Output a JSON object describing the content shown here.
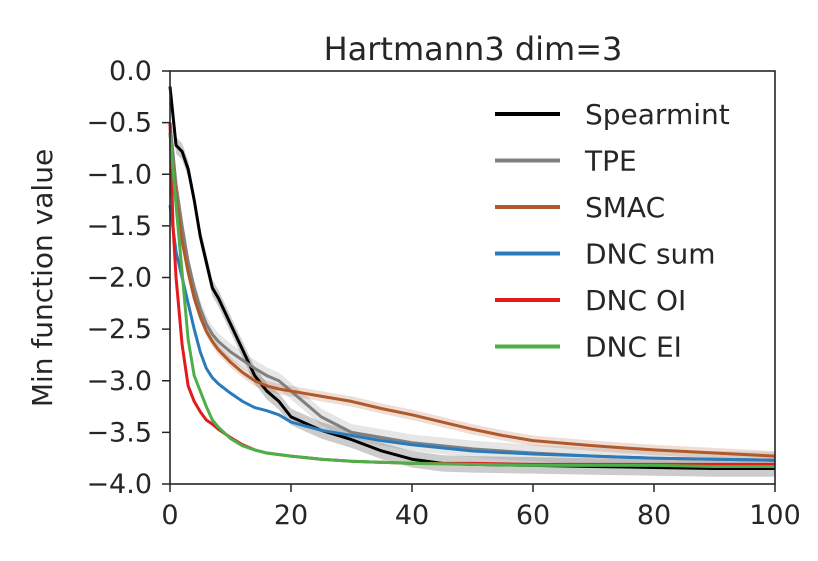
{
  "chart_data": {
    "type": "line",
    "title": "Hartmann3 dim=3",
    "xlabel": "",
    "ylabel": "Min function value",
    "xlim": [
      0,
      100
    ],
    "ylim": [
      -4.0,
      0.0
    ],
    "xticks": [
      0,
      20,
      40,
      60,
      80,
      100
    ],
    "xtick_labels": [
      "0",
      "20",
      "40",
      "60",
      "80",
      "100"
    ],
    "yticks": [
      0.0,
      -0.5,
      -1.0,
      -1.5,
      -2.0,
      -2.5,
      -3.0,
      -3.5,
      -4.0
    ],
    "ytick_labels": [
      "0.0",
      "−0.5",
      "−1.0",
      "−1.5",
      "−2.0",
      "−2.5",
      "−3.0",
      "−3.5",
      "−4.0"
    ],
    "grid": false,
    "legend_position": "top-right",
    "series": [
      {
        "name": "Spearmint",
        "color": "#000000",
        "band": 0.08,
        "x": [
          0,
          1,
          2,
          3,
          4,
          5,
          6,
          7,
          8,
          10,
          12,
          14,
          16,
          18,
          20,
          25,
          30,
          35,
          40,
          45,
          50,
          60,
          70,
          80,
          90,
          100
        ],
        "y": [
          -0.15,
          -0.72,
          -0.78,
          -0.95,
          -1.25,
          -1.6,
          -1.85,
          -2.1,
          -2.2,
          -2.45,
          -2.7,
          -2.95,
          -3.1,
          -3.2,
          -3.35,
          -3.48,
          -3.57,
          -3.68,
          -3.76,
          -3.8,
          -3.81,
          -3.82,
          -3.83,
          -3.84,
          -3.85,
          -3.85
        ]
      },
      {
        "name": "TPE",
        "color": "#808080",
        "band": 0.08,
        "x": [
          0,
          1,
          2,
          3,
          4,
          5,
          6,
          7,
          8,
          10,
          12,
          14,
          16,
          18,
          20,
          25,
          30,
          35,
          40,
          50,
          60,
          70,
          80,
          90,
          100
        ],
        "y": [
          -0.5,
          -1.1,
          -1.5,
          -1.85,
          -2.1,
          -2.3,
          -2.45,
          -2.55,
          -2.62,
          -2.72,
          -2.8,
          -2.88,
          -2.95,
          -3.0,
          -3.1,
          -3.35,
          -3.5,
          -3.55,
          -3.6,
          -3.66,
          -3.7,
          -3.73,
          -3.75,
          -3.76,
          -3.77
        ]
      },
      {
        "name": "SMAC",
        "color": "#b05a2c",
        "band": 0.05,
        "x": [
          0,
          1,
          2,
          3,
          4,
          5,
          6,
          7,
          8,
          10,
          12,
          14,
          16,
          18,
          20,
          25,
          30,
          35,
          40,
          45,
          50,
          55,
          60,
          70,
          80,
          90,
          100
        ],
        "y": [
          -0.6,
          -1.2,
          -1.65,
          -1.95,
          -2.2,
          -2.38,
          -2.52,
          -2.62,
          -2.7,
          -2.82,
          -2.92,
          -3.0,
          -3.05,
          -3.08,
          -3.1,
          -3.15,
          -3.2,
          -3.27,
          -3.33,
          -3.4,
          -3.47,
          -3.53,
          -3.58,
          -3.63,
          -3.67,
          -3.7,
          -3.73
        ]
      },
      {
        "name": "DNC sum",
        "color": "#2b7bba",
        "band": 0,
        "x": [
          0,
          1,
          2,
          3,
          4,
          5,
          6,
          7,
          8,
          10,
          12,
          14,
          16,
          18,
          20,
          25,
          30,
          35,
          40,
          45,
          50,
          60,
          70,
          80,
          90,
          100
        ],
        "y": [
          -1.3,
          -1.75,
          -2.0,
          -2.25,
          -2.5,
          -2.72,
          -2.88,
          -2.97,
          -3.03,
          -3.12,
          -3.2,
          -3.26,
          -3.29,
          -3.33,
          -3.4,
          -3.48,
          -3.53,
          -3.58,
          -3.62,
          -3.65,
          -3.68,
          -3.71,
          -3.73,
          -3.75,
          -3.76,
          -3.77
        ]
      },
      {
        "name": "DNC OI",
        "color": "#e41a1c",
        "band": 0,
        "x": [
          0,
          0.5,
          1,
          2,
          3,
          4,
          5,
          6,
          7,
          8,
          10,
          12,
          14,
          16,
          20,
          25,
          30,
          40,
          50,
          60,
          70,
          80,
          90,
          100
        ],
        "y": [
          -0.5,
          -1.5,
          -2.0,
          -2.65,
          -3.05,
          -3.2,
          -3.3,
          -3.38,
          -3.42,
          -3.47,
          -3.55,
          -3.62,
          -3.67,
          -3.7,
          -3.73,
          -3.76,
          -3.78,
          -3.8,
          -3.8,
          -3.81,
          -3.81,
          -3.81,
          -3.81,
          -3.81
        ]
      },
      {
        "name": "DNC EI",
        "color": "#4daf4a",
        "band": 0,
        "x": [
          0,
          1,
          2,
          3,
          4,
          5,
          6,
          7,
          8,
          10,
          12,
          14,
          16,
          20,
          25,
          30,
          40,
          50,
          60,
          70,
          80,
          90,
          100
        ],
        "y": [
          -0.6,
          -1.3,
          -1.95,
          -2.6,
          -2.95,
          -3.1,
          -3.25,
          -3.38,
          -3.45,
          -3.56,
          -3.63,
          -3.67,
          -3.7,
          -3.73,
          -3.76,
          -3.78,
          -3.8,
          -3.81,
          -3.82,
          -3.82,
          -3.82,
          -3.83,
          -3.83
        ]
      }
    ]
  }
}
